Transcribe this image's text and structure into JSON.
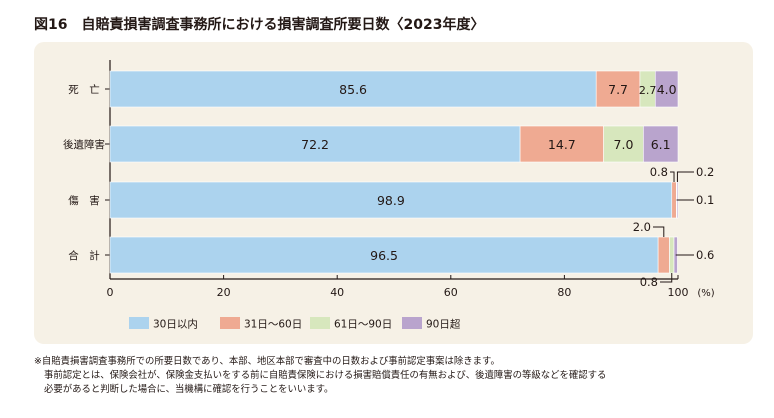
{
  "title": "図16　自賠責損害調査事務所における損害調査所要日数〈2023年度〉",
  "colors": {
    "panel_bg": "#f6f1e6",
    "s1": "#acd3ee",
    "s2": "#efaa92",
    "s3": "#d7e7bd",
    "s4": "#b9a4cd",
    "text": "#231815"
  },
  "chart_data": {
    "type": "bar",
    "orientation": "horizontal",
    "stacked": true,
    "categories": [
      "死　亡",
      "後遺障害",
      "傷　害",
      "合　計"
    ],
    "series": [
      {
        "name": "30日以内",
        "values": [
          85.6,
          72.2,
          98.9,
          96.5
        ]
      },
      {
        "name": "31日～60日",
        "values": [
          7.7,
          14.7,
          0.8,
          2.0
        ]
      },
      {
        "name": "61日～90日",
        "values": [
          2.7,
          7.0,
          0.1,
          0.8
        ]
      },
      {
        "name": "90日超",
        "values": [
          4.0,
          6.1,
          0.2,
          0.6
        ]
      }
    ],
    "xlim": [
      0,
      100
    ],
    "xticks": [
      "0",
      "20",
      "40",
      "60",
      "80",
      "100"
    ],
    "xunit": "(%)",
    "legend_position": "bottom"
  },
  "footnotes": [
    "※自賠責損害調査事務所での所要日数であり、本部、地区本部で審査中の日数および事前認定事案は除きます。",
    "事前認定とは、保険会社が、保険金支払いをする前に自賠責保険における損害賠償責任の有無および、後遺障害の等級などを確認する",
    "必要があると判断した場合に、当機構に確認を行うことをいいます。"
  ]
}
